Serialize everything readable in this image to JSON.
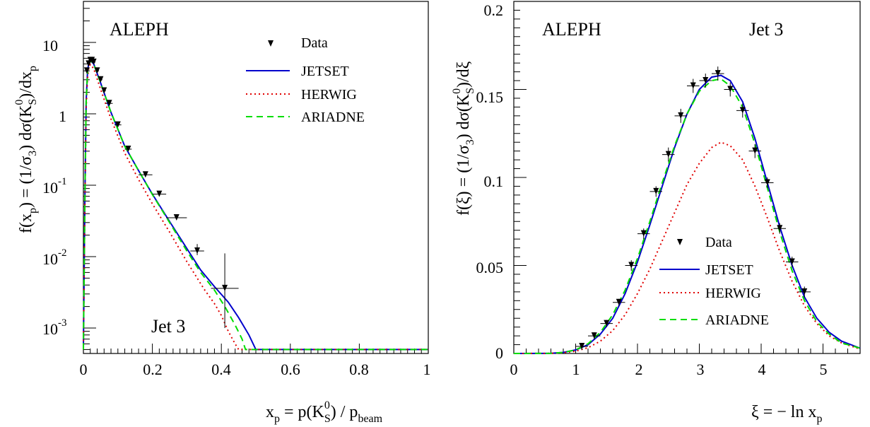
{
  "chart_data": [
    {
      "type": "scatter",
      "experiment": "ALEPH",
      "jet_label": "Jet 3",
      "y_scale": "log",
      "xlim": [
        0,
        1
      ],
      "ylim": [
        0.0005,
        30
      ],
      "x_tick_labels": [
        "0",
        "0.2",
        "0.4",
        "0.6",
        "0.8",
        "1"
      ],
      "y_tick_labels": [
        {
          "base": "10",
          "exp": ""
        },
        {
          "base": "1",
          "exp": ""
        },
        {
          "base": "10",
          "exp": "-1"
        },
        {
          "base": "10",
          "exp": "-2"
        },
        {
          "base": "10",
          "exp": "-3"
        }
      ],
      "xlabel": {
        "main": "x",
        "sub1": "p",
        "mid": " = p(K",
        "sup": "0",
        "sub2": "S",
        "tail": ") / p",
        "sub3": "beam"
      },
      "ylabel": {
        "a": "f(x",
        "a_sub": "p",
        "b": ") = (1/σ",
        "b_sub": "3",
        "c": ") dσ(K",
        "c_sup": "0",
        "c_sub": "S",
        "d": ")/dx",
        "d_sub": "p"
      },
      "legend": {
        "data": "Data",
        "jetset": "JETSET",
        "herwig": "HERWIG",
        "ariadne": "ARIADNE"
      },
      "colors": {
        "jetset": "#0000cc",
        "herwig": "#e00000",
        "ariadne": "#00dd00",
        "data": "#000000"
      },
      "series": [
        {
          "name": "Data",
          "x": [
            0.01,
            0.015,
            0.02,
            0.025,
            0.03,
            0.04,
            0.05,
            0.06,
            0.075,
            0.1,
            0.13,
            0.18,
            0.22,
            0.27,
            0.33,
            0.41
          ],
          "y": [
            4.0,
            5.0,
            5.6,
            5.6,
            5.3,
            4.0,
            3.0,
            2.1,
            1.4,
            0.7,
            0.32,
            0.14,
            0.075,
            0.035,
            0.012,
            0.0036
          ],
          "xerr": [
            0.005,
            0.005,
            0.005,
            0.005,
            0.005,
            0.005,
            0.005,
            0.005,
            0.01,
            0.01,
            0.01,
            0.02,
            0.02,
            0.03,
            0.02,
            0.04
          ],
          "yerr_lo": [
            0,
            0,
            0,
            0,
            0,
            0,
            0,
            0,
            0,
            0,
            0,
            0,
            0,
            0,
            0.0015,
            0.0026
          ],
          "yerr_hi": [
            0,
            0,
            0,
            0,
            0,
            0,
            0,
            0,
            0,
            0,
            0,
            0,
            0,
            0,
            0.003,
            0.0075
          ]
        },
        {
          "name": "JETSET",
          "x": [
            0.0,
            0.004,
            0.008,
            0.012,
            0.016,
            0.02,
            0.03,
            0.05,
            0.08,
            0.12,
            0.16,
            0.2,
            0.25,
            0.3,
            0.34,
            0.38,
            0.42,
            0.45,
            0.48,
            0.5,
            0.6,
            0.8,
            1.0
          ],
          "y": [
            0.0005,
            0.05,
            1.5,
            4.0,
            5.3,
            5.6,
            5.0,
            2.7,
            1.05,
            0.35,
            0.16,
            0.075,
            0.031,
            0.013,
            0.0065,
            0.0038,
            0.0023,
            0.0014,
            0.0008,
            0.0005,
            0.0005,
            0.0005,
            0.0005
          ]
        },
        {
          "name": "HERWIG",
          "x": [
            0.0,
            0.004,
            0.008,
            0.012,
            0.016,
            0.02,
            0.03,
            0.05,
            0.08,
            0.12,
            0.16,
            0.2,
            0.25,
            0.3,
            0.35,
            0.38,
            0.4,
            0.42,
            0.44,
            0.45,
            0.6,
            0.8,
            1.0
          ],
          "y": [
            0.0005,
            0.04,
            1.2,
            3.2,
            4.5,
            4.9,
            4.3,
            2.2,
            0.85,
            0.28,
            0.12,
            0.055,
            0.022,
            0.0085,
            0.0035,
            0.0022,
            0.0015,
            0.0009,
            0.0006,
            0.0005,
            0.0005,
            0.0005,
            0.0005
          ]
        },
        {
          "name": "ARIADNE",
          "x": [
            0.0,
            0.004,
            0.008,
            0.012,
            0.016,
            0.02,
            0.03,
            0.05,
            0.08,
            0.12,
            0.16,
            0.2,
            0.25,
            0.3,
            0.34,
            0.38,
            0.41,
            0.44,
            0.46,
            0.47,
            0.6,
            0.8,
            1.0
          ],
          "y": [
            0.0005,
            0.05,
            1.5,
            4.0,
            5.3,
            5.6,
            5.0,
            2.7,
            1.05,
            0.35,
            0.16,
            0.074,
            0.03,
            0.012,
            0.006,
            0.0034,
            0.002,
            0.0011,
            0.0007,
            0.0005,
            0.0005,
            0.0005,
            0.0005
          ]
        }
      ]
    },
    {
      "type": "scatter",
      "experiment": "ALEPH",
      "jet_label": "Jet 3",
      "y_scale": "linear",
      "xlim": [
        0,
        5.6
      ],
      "ylim": [
        0,
        0.2
      ],
      "x_tick_labels": [
        "0",
        "1",
        "2",
        "3",
        "4",
        "5"
      ],
      "y_tick_labels": [
        "0.2",
        "0.15",
        "0.1",
        "0.05",
        "0"
      ],
      "xlabel": {
        "main": "ξ = − ln x",
        "sub": "p"
      },
      "ylabel": {
        "a": "f(ξ) = (1/σ",
        "a_sub": "3",
        "b": ") dσ(K",
        "b_sup": "0",
        "b_sub": "S",
        "c": ")/dξ"
      },
      "legend": {
        "data": "Data",
        "jetset": "JETSET",
        "herwig": "HERWIG",
        "ariadne": "ARIADNE"
      },
      "colors": {
        "jetset": "#0000cc",
        "herwig": "#e00000",
        "ariadne": "#00dd00",
        "data": "#000000"
      },
      "series": [
        {
          "name": "Data",
          "x": [
            1.1,
            1.3,
            1.5,
            1.7,
            1.9,
            2.1,
            2.3,
            2.5,
            2.7,
            2.9,
            3.1,
            3.3,
            3.5,
            3.7,
            3.9,
            4.1,
            4.3,
            4.5,
            4.7
          ],
          "y": [
            0.004,
            0.01,
            0.017,
            0.029,
            0.05,
            0.068,
            0.092,
            0.113,
            0.135,
            0.152,
            0.155,
            0.159,
            0.15,
            0.138,
            0.115,
            0.097,
            0.071,
            0.052,
            0.035
          ],
          "xerr": [
            0.1,
            0.1,
            0.1,
            0.1,
            0.1,
            0.1,
            0.1,
            0.1,
            0.1,
            0.1,
            0.1,
            0.1,
            0.1,
            0.1,
            0.1,
            0.1,
            0.1,
            0.1,
            0.1
          ],
          "yerr": [
            0.002,
            0.002,
            0.002,
            0.002,
            0.003,
            0.003,
            0.003,
            0.004,
            0.004,
            0.004,
            0.004,
            0.004,
            0.004,
            0.004,
            0.004,
            0.003,
            0.003,
            0.003,
            0.003
          ]
        },
        {
          "name": "JETSET",
          "x": [
            0,
            0.6,
            0.8,
            1.0,
            1.2,
            1.4,
            1.6,
            1.8,
            2.0,
            2.2,
            2.4,
            2.6,
            2.8,
            3.0,
            3.2,
            3.35,
            3.5,
            3.7,
            3.9,
            4.1,
            4.3,
            4.5,
            4.7,
            4.9,
            5.1,
            5.3,
            5.6
          ],
          "y": [
            0,
            0.0001,
            0.0006,
            0.002,
            0.005,
            0.011,
            0.02,
            0.034,
            0.052,
            0.073,
            0.095,
            0.117,
            0.136,
            0.15,
            0.157,
            0.158,
            0.155,
            0.143,
            0.122,
            0.097,
            0.072,
            0.05,
            0.032,
            0.02,
            0.012,
            0.007,
            0.003
          ]
        },
        {
          "name": "HERWIG",
          "x": [
            0,
            0.6,
            0.8,
            1.0,
            1.2,
            1.4,
            1.6,
            1.8,
            2.0,
            2.2,
            2.4,
            2.6,
            2.8,
            3.0,
            3.2,
            3.35,
            3.5,
            3.7,
            3.9,
            4.1,
            4.3,
            4.5,
            4.7,
            4.9,
            5.1,
            5.3,
            5.6
          ],
          "y": [
            0,
            0.0001,
            0.0004,
            0.0013,
            0.0033,
            0.007,
            0.013,
            0.022,
            0.034,
            0.048,
            0.064,
            0.08,
            0.096,
            0.108,
            0.117,
            0.12,
            0.118,
            0.11,
            0.095,
            0.077,
            0.058,
            0.041,
            0.027,
            0.017,
            0.01,
            0.006,
            0.0025
          ]
        },
        {
          "name": "ARIADNE",
          "x": [
            0,
            0.6,
            0.8,
            1.0,
            1.2,
            1.4,
            1.6,
            1.8,
            2.0,
            2.2,
            2.4,
            2.6,
            2.8,
            3.0,
            3.2,
            3.35,
            3.5,
            3.7,
            3.9,
            4.1,
            4.3,
            4.5,
            4.7,
            4.9,
            5.1,
            5.3,
            5.6
          ],
          "y": [
            0,
            0.0001,
            0.0006,
            0.002,
            0.0055,
            0.012,
            0.022,
            0.036,
            0.054,
            0.075,
            0.097,
            0.118,
            0.136,
            0.149,
            0.155,
            0.156,
            0.152,
            0.14,
            0.119,
            0.094,
            0.069,
            0.047,
            0.03,
            0.018,
            0.011,
            0.006,
            0.003
          ]
        }
      ]
    }
  ]
}
